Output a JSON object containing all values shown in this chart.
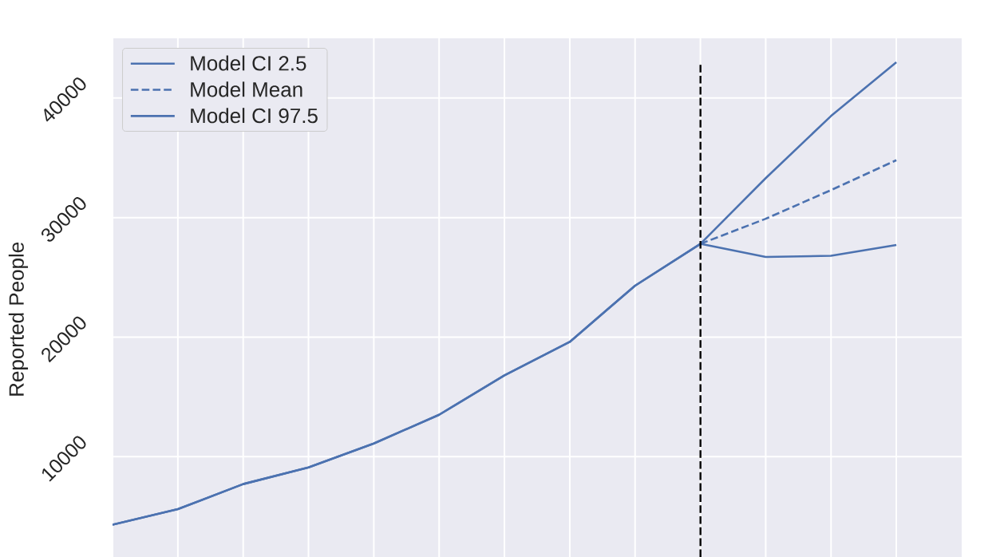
{
  "chart_data": {
    "type": "line",
    "ylabel": "Reported People",
    "categories": [
      null,
      null,
      null,
      null,
      null,
      null,
      null,
      null,
      null,
      null,
      null,
      null,
      null
    ],
    "ylim": [
      1600,
      45000
    ],
    "yticks": [
      10000,
      20000,
      30000,
      40000
    ],
    "tick_labels": "y",
    "grid": true,
    "legend": "top left",
    "marker": "none",
    "series": [
      {
        "name": "Model CI 2.5",
        "color": "#4c72b0",
        "line_style": "solid",
        "values": [
          4300,
          5600,
          7700,
          9100,
          11100,
          13500,
          16800,
          19600,
          24300,
          27800,
          26700,
          26800,
          27700
        ]
      },
      {
        "name": "Model Mean",
        "color": "#4c72b0",
        "line_style": "dashed",
        "values": [
          null,
          null,
          null,
          null,
          null,
          null,
          null,
          null,
          null,
          27800,
          29900,
          32300,
          34800
        ]
      },
      {
        "name": "Model CI 97.5",
        "color": "#4c72b0",
        "line_style": "solid",
        "values": [
          4300,
          5600,
          7700,
          9100,
          11100,
          13500,
          16800,
          19600,
          24300,
          27800,
          33300,
          38500,
          43000
        ]
      }
    ]
  }
}
